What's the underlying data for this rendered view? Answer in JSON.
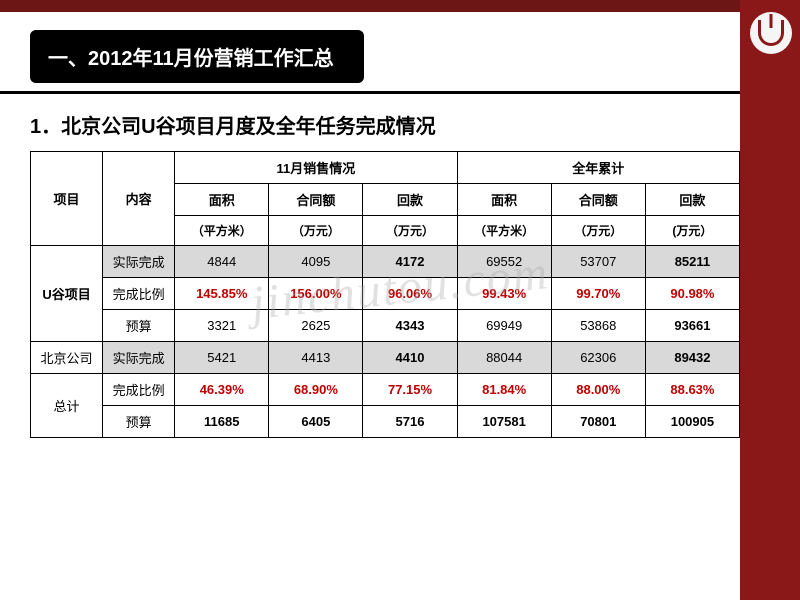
{
  "header": {
    "title": "一、2012年11月份营销工作汇总",
    "subtitle": "1．北京公司U谷项目月度及全年任务完成情况"
  },
  "watermark": "jinchutou.com",
  "table": {
    "col_headers": {
      "project": "项目",
      "content": "内容",
      "nov_group": "11月销售情况",
      "year_group": "全年累计",
      "area": "面积",
      "contract": "合同额",
      "payment": "回款",
      "unit_area": "（平方米）",
      "unit_wan": "（万元）",
      "unit_wan_b": "(万元）"
    },
    "row_labels": {
      "proj_u": "U谷项目",
      "proj_bj": "北京公司",
      "proj_total": "总计",
      "actual": "实际完成",
      "ratio": "完成比例",
      "budget": "预算"
    },
    "u": {
      "actual": [
        "4844",
        "4095",
        "4172",
        "69552",
        "53707",
        "85211"
      ],
      "ratio": [
        "145.85%",
        "156.00%",
        "96.06%",
        "99.43%",
        "99.70%",
        "90.98%"
      ],
      "budget": [
        "3321",
        "2625",
        "4343",
        "69949",
        "53868",
        "93661"
      ]
    },
    "bj": {
      "actual": [
        "5421",
        "4413",
        "4410",
        "88044",
        "62306",
        "89432"
      ],
      "ratio": [
        "46.39%",
        "68.90%",
        "77.15%",
        "81.84%",
        "88.00%",
        "88.63%"
      ],
      "budget": [
        "11685",
        "6405",
        "5716",
        "107581",
        "70801",
        "100905"
      ]
    }
  },
  "colors": {
    "brand_dark": "#8b1818",
    "black": "#000000",
    "gray_fill": "#d9d9d9",
    "red_text": "#c00000",
    "white": "#ffffff"
  }
}
